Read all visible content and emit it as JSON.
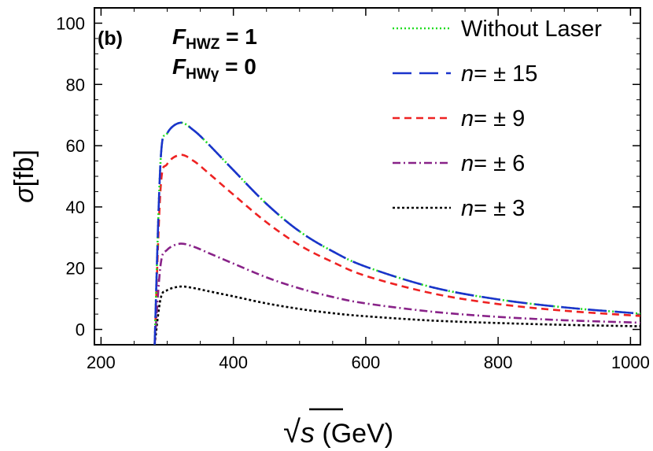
{
  "chart_data": {
    "type": "line",
    "panel_label": "(b)",
    "annotations": [
      {
        "main": "F",
        "sub": "HWZ",
        "rest": " = 1"
      },
      {
        "main": "F",
        "sub": "HWγ",
        "rest": " = 0"
      }
    ],
    "xlabel": {
      "radical": "√",
      "var": "s",
      "unit": " (GeV)"
    },
    "ylabel": {
      "sym": "σ",
      "unit": "[fb]"
    },
    "xlim": [
      190,
      1015
    ],
    "ylim": [
      -5,
      105
    ],
    "xticks": [
      200,
      400,
      600,
      800,
      1000
    ],
    "yticks": [
      0,
      20,
      40,
      60,
      80,
      100
    ],
    "grid": false,
    "legend_position": "top-right",
    "threshold": 281,
    "series": [
      {
        "name": "Without Laser",
        "color": "#22dd22",
        "dash": "2,3",
        "width": 2.6,
        "legend_label": {
          "prefix": "",
          "rest": "Without Laser"
        },
        "x": [
          281,
          290,
          300,
          320,
          340,
          360,
          400,
          450,
          500,
          550,
          600,
          700,
          800,
          900,
          1000,
          1015
        ],
        "y": [
          -5,
          55,
          64,
          67.5,
          65,
          61,
          52,
          41,
          32,
          25.5,
          20.5,
          13.8,
          9.8,
          7.2,
          5.4,
          5.2
        ]
      },
      {
        "name": "n= ± 15",
        "color": "#1a33cc",
        "dash": "24,10",
        "width": 2.6,
        "legend_label": {
          "prefix": "n",
          "rest": "= ± 15"
        },
        "x": [
          281,
          290,
          300,
          320,
          340,
          360,
          400,
          450,
          500,
          550,
          600,
          700,
          800,
          900,
          1000,
          1015
        ],
        "y": [
          -5,
          55,
          64,
          67.5,
          65,
          61,
          52,
          41,
          32,
          25.5,
          20.5,
          13.8,
          9.8,
          7.2,
          5.4,
          5.2
        ]
      },
      {
        "name": "n= ± 9",
        "color": "#ee2222",
        "dash": "9,6",
        "width": 2.6,
        "legend_label": {
          "prefix": "n",
          "rest": "= ± 9"
        },
        "x": [
          281,
          290,
          300,
          320,
          340,
          360,
          400,
          450,
          500,
          550,
          600,
          700,
          800,
          900,
          1000,
          1015
        ],
        "y": [
          -5,
          46,
          54,
          57,
          55,
          51.5,
          44,
          35,
          27.5,
          22,
          17.5,
          11.8,
          8.3,
          6.1,
          4.6,
          4.4
        ]
      },
      {
        "name": "n= ± 6",
        "color": "#882288",
        "dash": "10,4,2,4",
        "width": 2.6,
        "legend_label": {
          "prefix": "n",
          "rest": "= ± 6"
        },
        "x": [
          281,
          290,
          300,
          320,
          340,
          360,
          400,
          450,
          500,
          550,
          600,
          700,
          800,
          900,
          1000,
          1015
        ],
        "y": [
          -5,
          21,
          26,
          28,
          27,
          25.2,
          21.5,
          17,
          13.4,
          10.6,
          8.5,
          5.8,
          4.1,
          3,
          2.3,
          2.2
        ]
      },
      {
        "name": "n= ± 3",
        "color": "#000000",
        "dash": "3,3",
        "width": 2.6,
        "legend_label": {
          "prefix": "n",
          "rest": "= ± 3"
        },
        "x": [
          281,
          290,
          300,
          320,
          340,
          360,
          400,
          450,
          500,
          550,
          600,
          700,
          800,
          900,
          1000,
          1015
        ],
        "y": [
          -5,
          10,
          12.8,
          14,
          13.5,
          12.6,
          10.8,
          8.5,
          6.7,
          5.3,
          4.3,
          2.9,
          2.1,
          1.5,
          1.1,
          1.05
        ]
      }
    ]
  }
}
